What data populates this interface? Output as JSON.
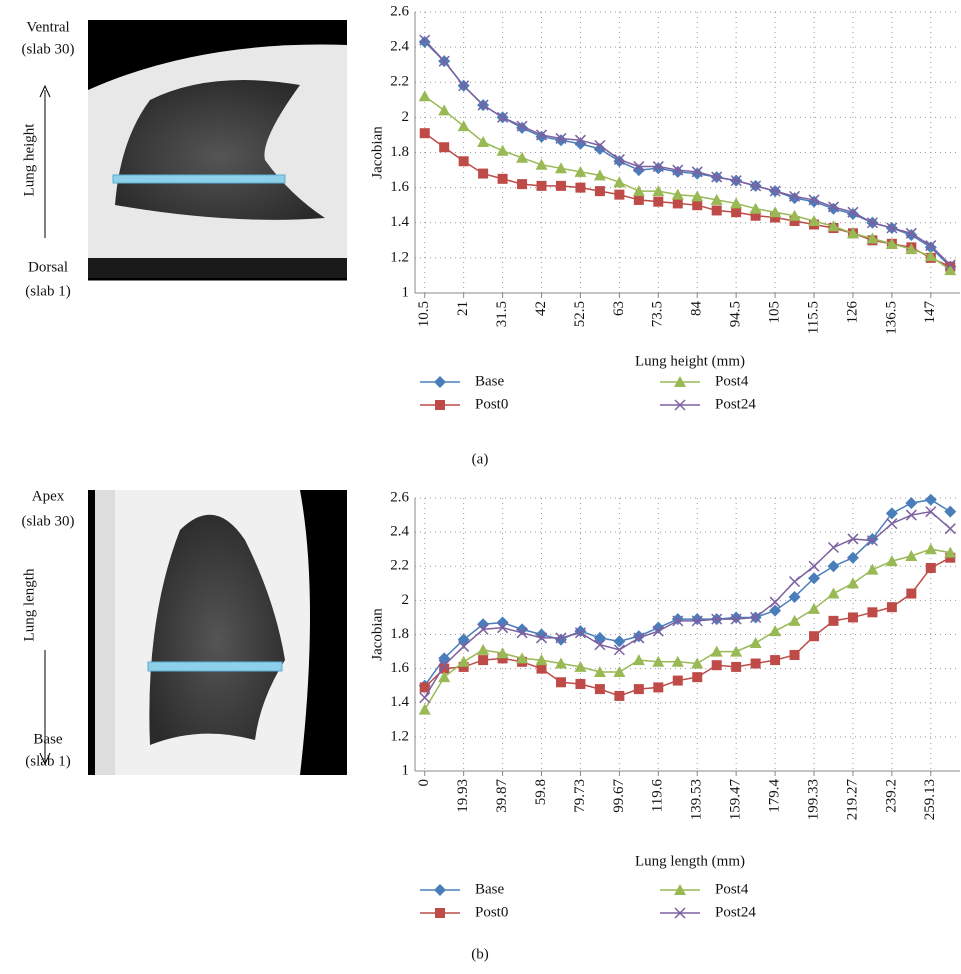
{
  "chart_data": [
    {
      "type": "line",
      "caption": "(a)",
      "y_label": "Jacobian",
      "x_label": "Lung height (mm)",
      "image_labels": {
        "top": "Ventral",
        "top_sub": "(slab 30)",
        "side": "Lung height",
        "bottom": "Dorsal",
        "bottom_sub": "(slab 1)"
      },
      "categories": [
        "10.5",
        null,
        "21",
        null,
        "31.5",
        null,
        "42",
        null,
        "52.5",
        null,
        "63",
        null,
        "73.5",
        null,
        "84",
        null,
        "94.5",
        null,
        "105",
        null,
        "115.5",
        null,
        "126",
        null,
        "136.5",
        null,
        "147",
        null
      ],
      "ylim": [
        1,
        2.6
      ],
      "yticks": [
        1,
        1.2,
        1.4,
        1.6,
        1.8,
        2,
        2.2,
        2.4,
        2.6
      ],
      "grid": true,
      "series": [
        {
          "name": "Base",
          "color": "#4a7ebb",
          "marker": "diamond",
          "values": [
            2.43,
            2.32,
            2.18,
            2.07,
            2.0,
            1.94,
            1.89,
            1.87,
            1.85,
            1.82,
            1.75,
            1.7,
            1.71,
            1.69,
            1.68,
            1.66,
            1.64,
            1.61,
            1.58,
            1.54,
            1.52,
            1.48,
            1.45,
            1.4,
            1.37,
            1.33,
            1.26,
            1.15
          ]
        },
        {
          "name": "Post0",
          "color": "#be4b48",
          "marker": "square",
          "values": [
            1.91,
            1.83,
            1.75,
            1.68,
            1.65,
            1.62,
            1.61,
            1.61,
            1.6,
            1.58,
            1.56,
            1.53,
            1.52,
            1.51,
            1.5,
            1.47,
            1.46,
            1.44,
            1.43,
            1.41,
            1.39,
            1.37,
            1.34,
            1.3,
            1.28,
            1.26,
            1.2,
            1.15
          ]
        },
        {
          "name": "Post4",
          "color": "#98b954",
          "marker": "triangle",
          "values": [
            2.12,
            2.04,
            1.95,
            1.86,
            1.81,
            1.77,
            1.73,
            1.71,
            1.69,
            1.67,
            1.63,
            1.58,
            1.58,
            1.56,
            1.55,
            1.53,
            1.51,
            1.48,
            1.46,
            1.44,
            1.41,
            1.38,
            1.34,
            1.31,
            1.28,
            1.25,
            1.21,
            1.13
          ]
        },
        {
          "name": "Post24",
          "color": "#7d60a0",
          "marker": "x",
          "values": [
            2.44,
            2.32,
            2.18,
            2.07,
            2.0,
            1.95,
            1.9,
            1.88,
            1.87,
            1.84,
            1.76,
            1.72,
            1.72,
            1.7,
            1.69,
            1.66,
            1.64,
            1.61,
            1.58,
            1.55,
            1.53,
            1.49,
            1.46,
            1.4,
            1.37,
            1.34,
            1.27,
            1.16
          ]
        }
      ]
    },
    {
      "type": "line",
      "caption": "(b)",
      "y_label": "Jacobian",
      "x_label": "Lung length (mm)",
      "image_labels": {
        "top": "Apex",
        "top_sub": "(slab 30)",
        "side": "Lung length",
        "bottom": "Base",
        "bottom_sub": "(slab 1)"
      },
      "categories": [
        "0",
        null,
        "19.93",
        null,
        "39.87",
        null,
        "59.8",
        null,
        "79.73",
        null,
        "99.67",
        null,
        "119.6",
        null,
        "139.53",
        null,
        "159.47",
        null,
        "179.4",
        null,
        "199.33",
        null,
        "219.27",
        null,
        "239.2",
        null,
        "259.13",
        null
      ],
      "ylim": [
        1,
        2.6
      ],
      "yticks": [
        1,
        1.2,
        1.4,
        1.6,
        1.8,
        2,
        2.2,
        2.4,
        2.6
      ],
      "grid": true,
      "series": [
        {
          "name": "Base",
          "color": "#4a7ebb",
          "marker": "diamond",
          "values": [
            1.5,
            1.66,
            1.77,
            1.86,
            1.87,
            1.83,
            1.8,
            1.77,
            1.82,
            1.78,
            1.76,
            1.79,
            1.84,
            1.89,
            1.89,
            1.89,
            1.9,
            1.9,
            1.94,
            2.02,
            2.13,
            2.2,
            2.25,
            2.36,
            2.51,
            2.57,
            2.59,
            2.52
          ]
        },
        {
          "name": "Post0",
          "color": "#be4b48",
          "marker": "square",
          "values": [
            1.49,
            1.6,
            1.61,
            1.65,
            1.66,
            1.64,
            1.6,
            1.52,
            1.51,
            1.48,
            1.44,
            1.48,
            1.49,
            1.53,
            1.55,
            1.62,
            1.61,
            1.63,
            1.65,
            1.68,
            1.79,
            1.88,
            1.9,
            1.93,
            1.96,
            2.04,
            2.19,
            2.25
          ]
        },
        {
          "name": "Post4",
          "color": "#98b954",
          "marker": "triangle",
          "values": [
            1.36,
            1.55,
            1.64,
            1.71,
            1.69,
            1.66,
            1.65,
            1.63,
            1.61,
            1.58,
            1.58,
            1.65,
            1.64,
            1.64,
            1.63,
            1.7,
            1.7,
            1.75,
            1.82,
            1.88,
            1.95,
            2.04,
            2.1,
            2.18,
            2.23,
            2.26,
            2.3,
            2.28
          ]
        },
        {
          "name": "Post24",
          "color": "#7d60a0",
          "marker": "x",
          "values": [
            1.43,
            1.62,
            1.73,
            1.83,
            1.84,
            1.81,
            1.78,
            1.78,
            1.81,
            1.74,
            1.71,
            1.78,
            1.82,
            1.88,
            1.88,
            1.89,
            1.89,
            1.9,
            1.99,
            2.11,
            2.2,
            2.31,
            2.36,
            2.35,
            2.45,
            2.5,
            2.52,
            2.42
          ]
        }
      ]
    }
  ]
}
